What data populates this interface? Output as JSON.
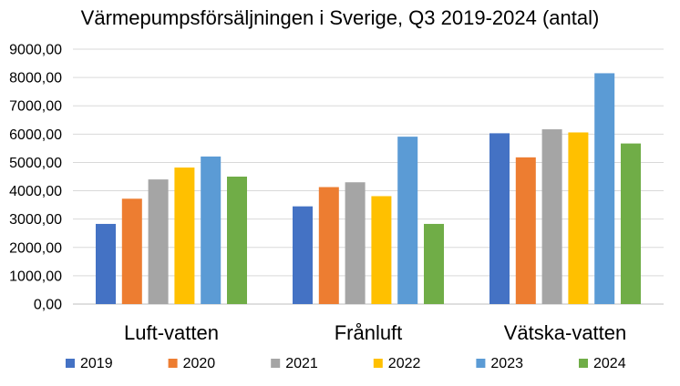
{
  "chart_data": {
    "type": "bar",
    "title": "Värmepumpsförsäljningen i Sverige, Q3 2019-2024 (antal)",
    "xlabel": "",
    "ylabel": "",
    "ylim": [
      0,
      9000
    ],
    "y_ticks": [
      0,
      1000,
      2000,
      3000,
      4000,
      5000,
      6000,
      7000,
      8000,
      9000
    ],
    "y_tick_labels": [
      "0,00",
      "1000,00",
      "2000,00",
      "3000,00",
      "4000,00",
      "5000,00",
      "6000,00",
      "7000,00",
      "8000,00",
      "9000,00"
    ],
    "grid": true,
    "legend_position": "bottom",
    "categories": [
      "Luft-vatten",
      "Frånluft",
      "Vätska-vatten"
    ],
    "series": [
      {
        "name": "2019",
        "color": "#4472C4",
        "values": [
          2830,
          3450,
          6030
        ]
      },
      {
        "name": "2020",
        "color": "#ED7D31",
        "values": [
          3720,
          4130,
          5180
        ]
      },
      {
        "name": "2021",
        "color": "#A5A5A5",
        "values": [
          4400,
          4300,
          6170
        ]
      },
      {
        "name": "2022",
        "color": "#FFC000",
        "values": [
          4820,
          3810,
          6060
        ]
      },
      {
        "name": "2023",
        "color": "#5B9BD5",
        "values": [
          5210,
          5910,
          8150
        ]
      },
      {
        "name": "2024",
        "color": "#70AD47",
        "values": [
          4500,
          2830,
          5670
        ]
      }
    ]
  }
}
